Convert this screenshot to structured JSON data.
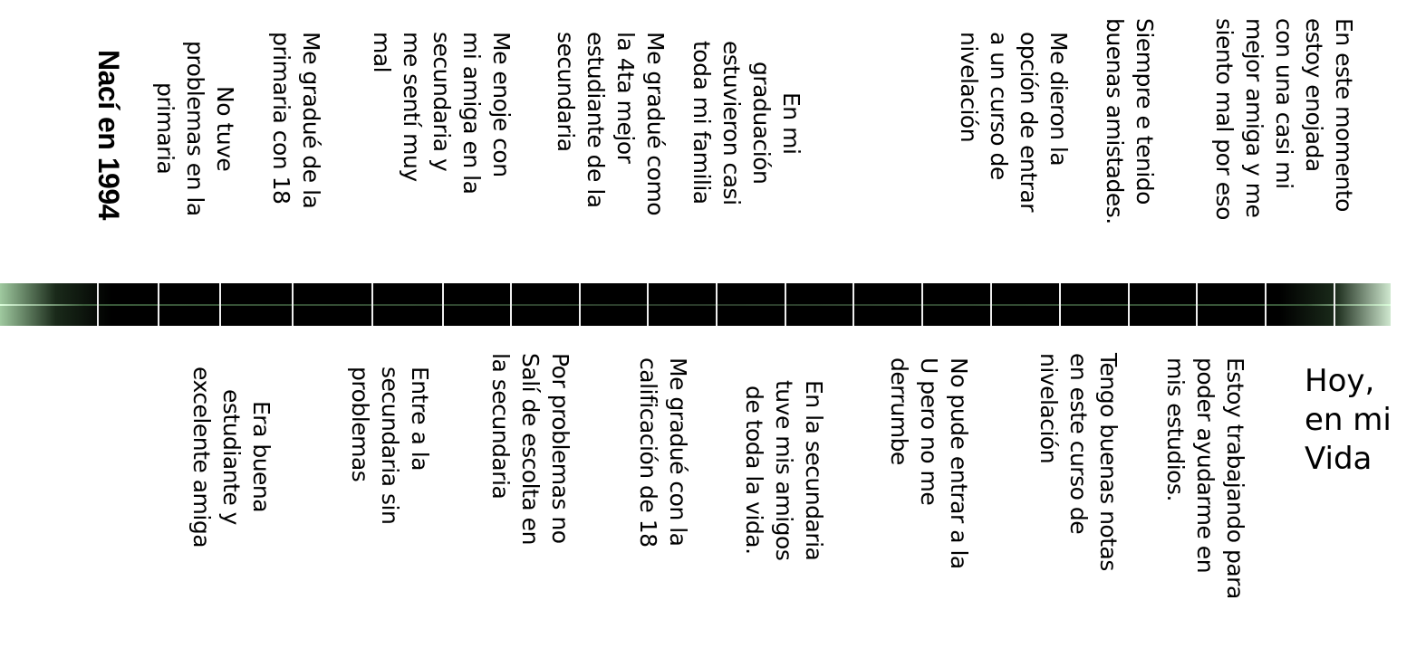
{
  "timeline": {
    "top": [
      "En este momento\nestoy enojada\ncon una casi mi\nmejor amiga y me\nsiento mal por eso",
      "Siempre e tenido\nbuenas amistades.",
      "Me dieron la\nopción de entrar\na un curso de\nnivelación",
      "En mi\ngraduación\nestuvieron casi\ntoda mi familia",
      "Me gradué como\nla 4ta mejor\nestudiante de la\nsecundaria",
      "Me enoje con\nmi amiga en la\nsecundaria y\nme sentí muy\nmal",
      "Me gradué de la\nprimaria con 18",
      "No tuve\nproblemas en la\nprimaria",
      "Nací en 1994"
    ],
    "bottom": [
      "Hoy,\nen mi\nVida",
      "Estoy trabajando para\npoder ayudarme en\nmis estudios.",
      "Tengo buenas notas\nen este curso de\nnivelación",
      "No pude entrar a la\nU pero no me\nderrumbe",
      "En la secundaria\ntuve mis amigos\nde toda la vida.",
      "Me gradué con la\ncalificación de 18",
      "Por problemas no\nSalí de escolta en\nla secundaria",
      "Entre a la\nsecundaria sin\nproblemas",
      "Era buena\nestudiante y\nexcelente amiga"
    ]
  }
}
